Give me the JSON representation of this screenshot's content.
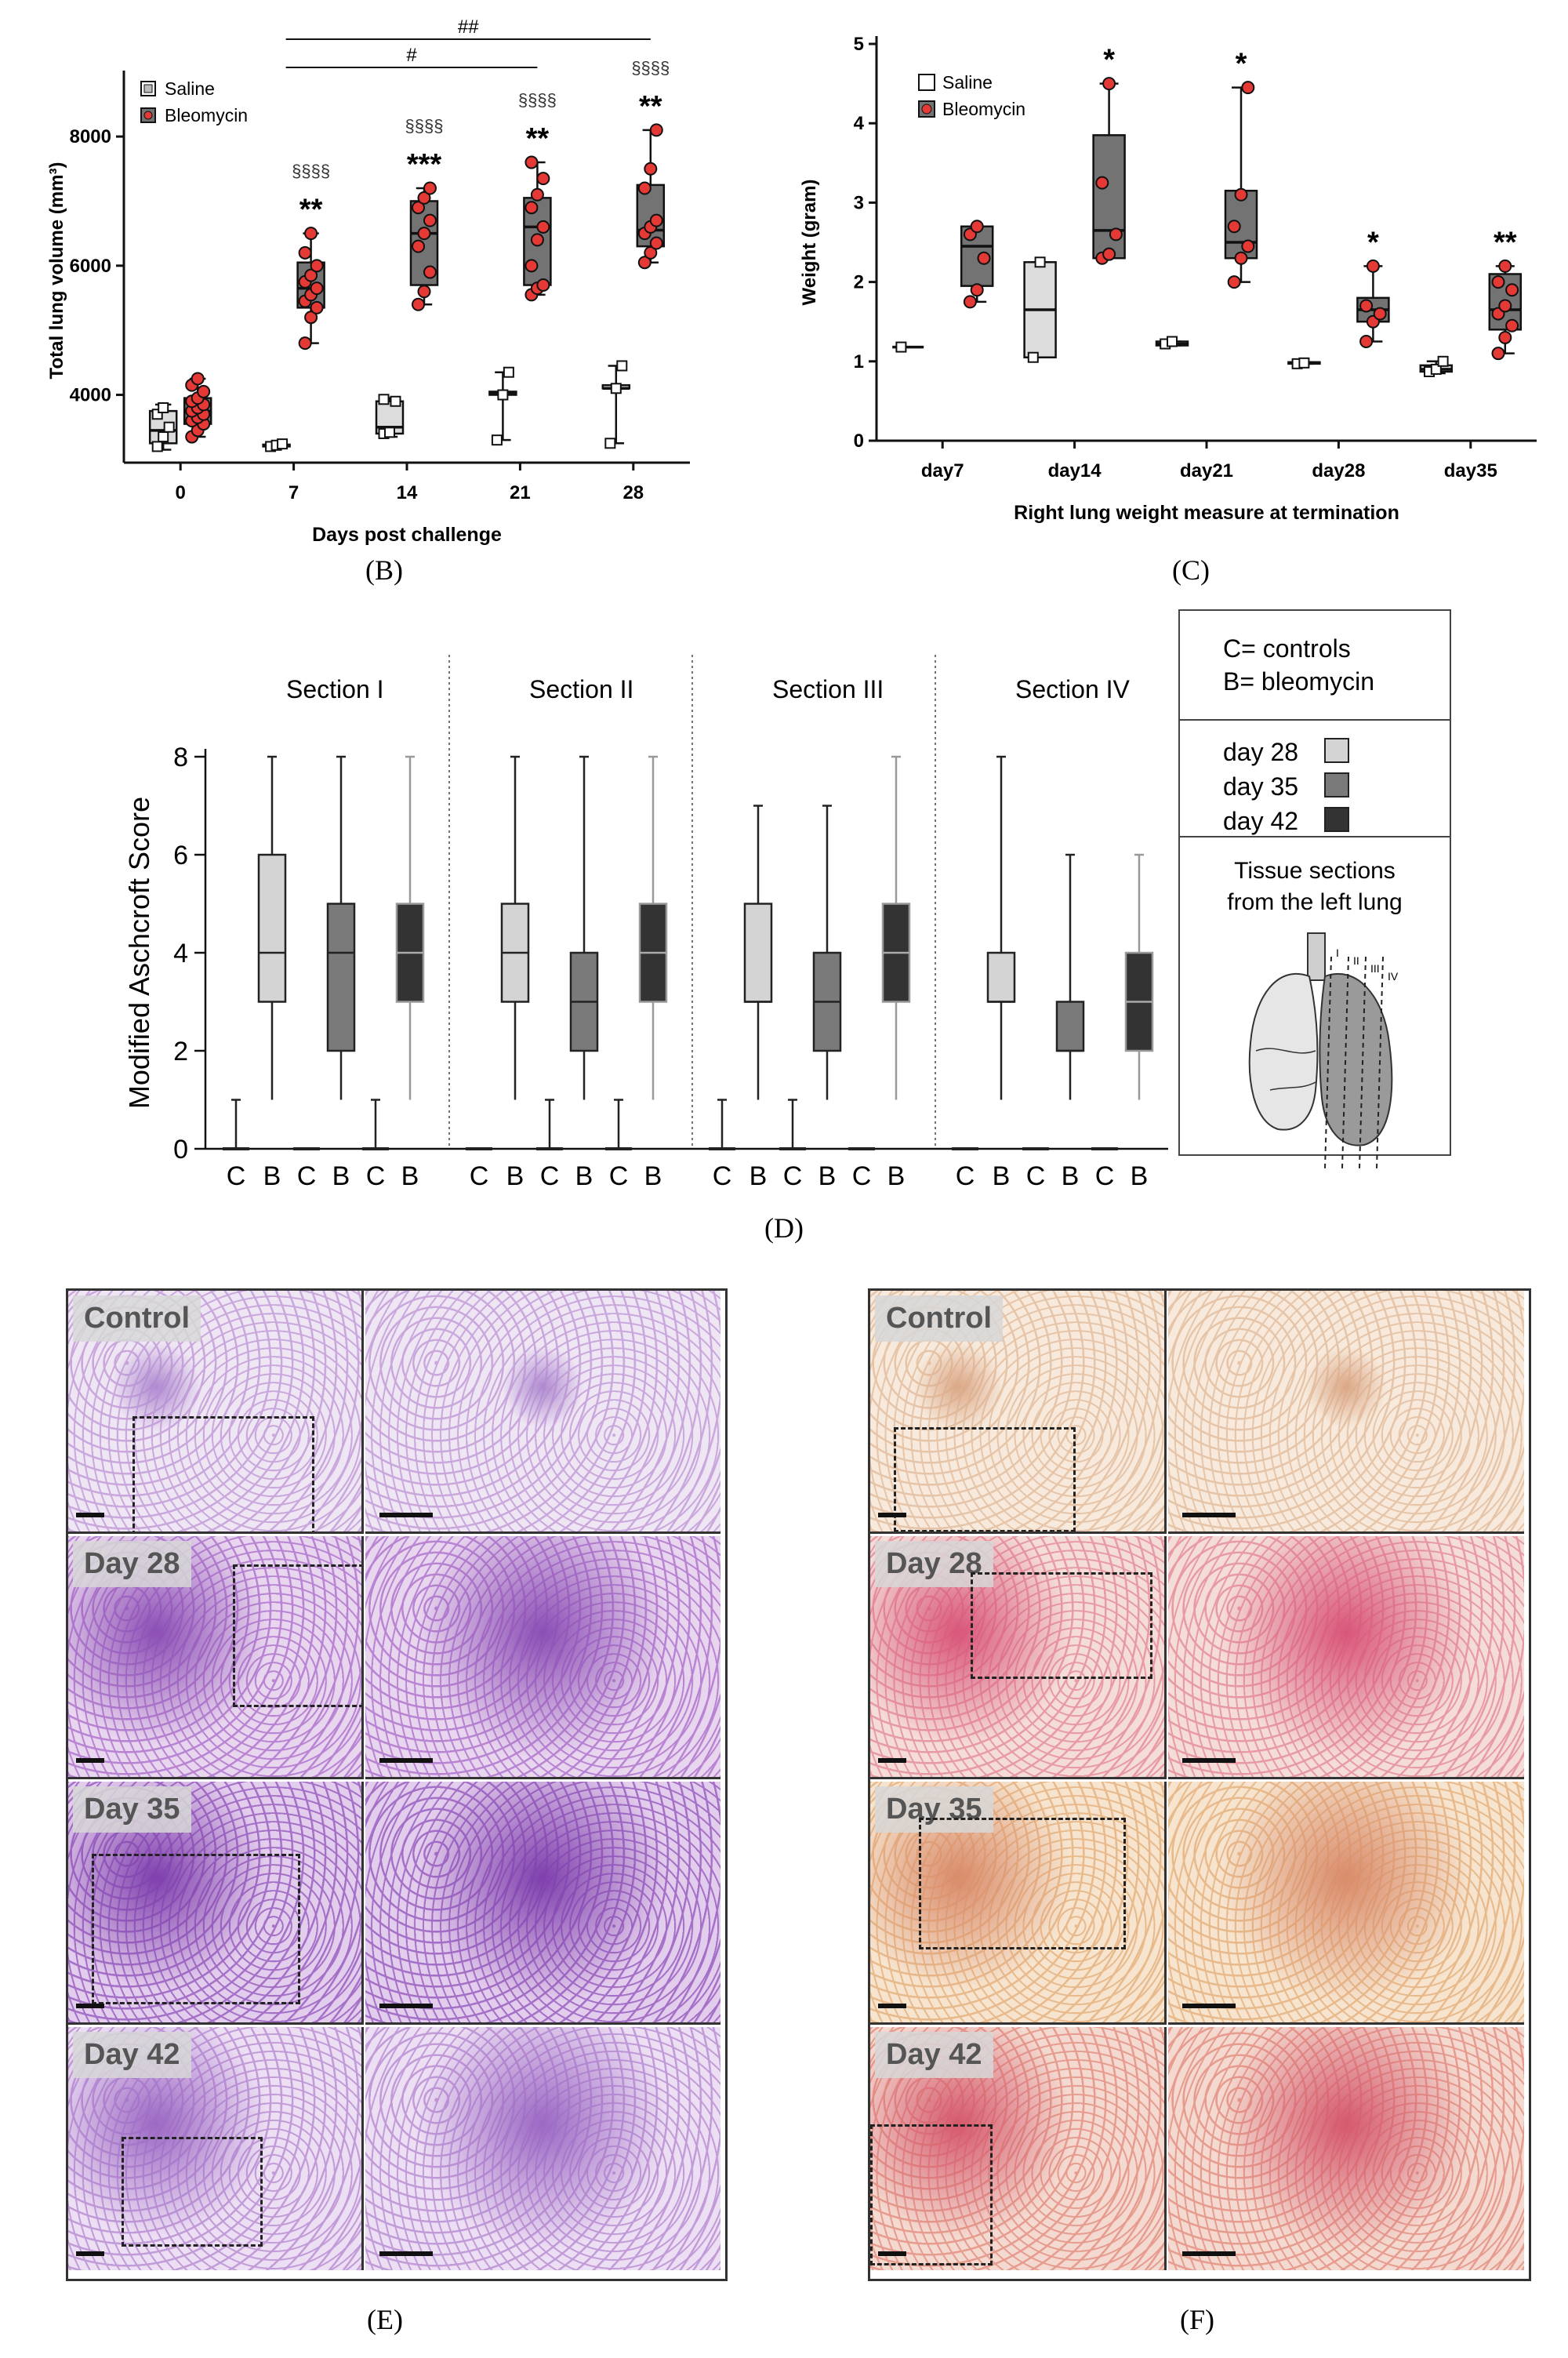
{
  "panels": {
    "B": "(B)",
    "C": "(C)",
    "D": "(D)",
    "E": "(E)",
    "F": "(F)"
  },
  "chart_data": [
    {
      "id": "B",
      "type": "box",
      "xlabel": "Days post challenge",
      "ylabel": "Total lung volume (mm³)",
      "categories": [
        "0",
        "7",
        "14",
        "21",
        "28"
      ],
      "yticks": [
        "4000",
        "6000",
        "8000"
      ],
      "ylim": [
        2950,
        8900
      ],
      "legend": [
        "Saline",
        "Bleomycin"
      ],
      "legend_position": "top-left",
      "series": [
        {
          "name": "Saline",
          "boxes": [
            {
              "cat": "0",
              "min": 3150,
              "q1": 3250,
              "median": 3450,
              "q3": 3750,
              "max": 3850,
              "points": [
                3200,
                3350,
                3500,
                3700,
                3800
              ]
            },
            {
              "cat": "7",
              "min": 3180,
              "q1": 3200,
              "median": 3220,
              "q3": 3230,
              "max": 3250,
              "points": [
                3200,
                3220,
                3240
              ]
            },
            {
              "cat": "14",
              "min": 3350,
              "q1": 3400,
              "median": 3500,
              "q3": 3900,
              "max": 3950,
              "points": [
                3400,
                3420,
                3900,
                3930
              ]
            },
            {
              "cat": "21",
              "min": 3300,
              "q1": 4000,
              "median": 4020,
              "q3": 4050,
              "max": 4350,
              "points": [
                3300,
                4000,
                4350
              ]
            },
            {
              "cat": "28",
              "min": 3250,
              "q1": 4100,
              "median": 4100,
              "q3": 4150,
              "max": 4450,
              "points": [
                3250,
                4100,
                4450
              ]
            }
          ]
        },
        {
          "name": "Bleomycin",
          "boxes": [
            {
              "cat": "0",
              "min": 3350,
              "q1": 3550,
              "median": 3750,
              "q3": 3950,
              "max": 4250,
              "points": [
                3350,
                3450,
                3550,
                3600,
                3650,
                3700,
                3750,
                3800,
                3850,
                3900,
                3950,
                4050,
                4150,
                4250
              ]
            },
            {
              "cat": "7",
              "min": 4800,
              "q1": 5350,
              "median": 5650,
              "q3": 6050,
              "max": 6500,
              "points": [
                4800,
                5200,
                5350,
                5450,
                5550,
                5650,
                5750,
                5850,
                6000,
                6200,
                6500
              ]
            },
            {
              "cat": "14",
              "min": 5400,
              "q1": 5700,
              "median": 6500,
              "q3": 7000,
              "max": 7200,
              "points": [
                5400,
                5600,
                5900,
                6300,
                6500,
                6700,
                6900,
                7050,
                7200
              ]
            },
            {
              "cat": "21",
              "min": 5550,
              "q1": 5700,
              "median": 6600,
              "q3": 7050,
              "max": 7600,
              "points": [
                5550,
                5650,
                5700,
                6000,
                6400,
                6600,
                6900,
                7100,
                7350,
                7600
              ]
            },
            {
              "cat": "28",
              "min": 6050,
              "q1": 6300,
              "median": 6550,
              "q3": 7250,
              "max": 8100,
              "points": [
                6050,
                6200,
                6350,
                6500,
                6600,
                6700,
                7200,
                7500,
                8100
              ]
            }
          ]
        }
      ],
      "annotations": [
        {
          "cat": "7",
          "stars": "**",
          "section": "§§§§"
        },
        {
          "cat": "14",
          "stars": "***",
          "section": "§§§§"
        },
        {
          "cat": "21",
          "stars": "**",
          "section": "§§§§"
        },
        {
          "cat": "28",
          "stars": "**",
          "section": "§§§§"
        }
      ],
      "brackets": [
        {
          "from": "7",
          "to": "21",
          "label": "#"
        },
        {
          "from": "7",
          "to": "28",
          "label": "##"
        }
      ]
    },
    {
      "id": "C",
      "type": "box",
      "xlabel": "Right lung weight measure at termination",
      "ylabel": "Weight (gram)",
      "categories": [
        "day7",
        "day14",
        "day21",
        "day28",
        "day35"
      ],
      "yticks": [
        "0",
        "1",
        "2",
        "3",
        "4",
        "5"
      ],
      "ylim": [
        0,
        5
      ],
      "legend": [
        "Saline",
        "Bleomycin"
      ],
      "legend_position": "top-left",
      "series": [
        {
          "name": "Saline",
          "boxes": [
            {
              "cat": "day7",
              "min": 1.18,
              "q1": 1.18,
              "median": 1.18,
              "q3": 1.18,
              "max": 1.18,
              "points": [
                1.18
              ]
            },
            {
              "cat": "day14",
              "min": 1.05,
              "q1": 1.05,
              "median": 1.65,
              "q3": 2.25,
              "max": 2.25,
              "points": [
                1.05,
                2.25
              ]
            },
            {
              "cat": "day21",
              "min": 1.2,
              "q1": 1.2,
              "median": 1.22,
              "q3": 1.25,
              "max": 1.25,
              "points": [
                1.22,
                1.25
              ]
            },
            {
              "cat": "day28",
              "min": 0.97,
              "q1": 0.97,
              "median": 0.98,
              "q3": 0.99,
              "max": 0.99,
              "points": [
                0.97,
                0.98
              ]
            },
            {
              "cat": "day35",
              "min": 0.85,
              "q1": 0.87,
              "median": 0.9,
              "q3": 0.95,
              "max": 1.0,
              "points": [
                0.87,
                0.9,
                1.0
              ]
            }
          ]
        },
        {
          "name": "Bleomycin",
          "boxes": [
            {
              "cat": "day7",
              "min": 1.75,
              "q1": 1.95,
              "median": 2.45,
              "q3": 2.7,
              "max": 2.7,
              "points": [
                1.75,
                1.9,
                2.3,
                2.6,
                2.7
              ]
            },
            {
              "cat": "day14",
              "min": 2.3,
              "q1": 2.3,
              "median": 2.65,
              "q3": 3.85,
              "max": 4.5,
              "points": [
                2.3,
                2.35,
                2.6,
                3.25,
                4.5
              ]
            },
            {
              "cat": "day21",
              "min": 2.0,
              "q1": 2.3,
              "median": 2.5,
              "q3": 3.15,
              "max": 4.45,
              "points": [
                2.0,
                2.3,
                2.45,
                2.7,
                3.1,
                4.45
              ]
            },
            {
              "cat": "day28",
              "min": 1.25,
              "q1": 1.5,
              "median": 1.65,
              "q3": 1.8,
              "max": 2.2,
              "points": [
                1.25,
                1.5,
                1.6,
                1.7,
                2.2
              ]
            },
            {
              "cat": "day35",
              "min": 1.1,
              "q1": 1.4,
              "median": 1.65,
              "q3": 2.1,
              "max": 2.2,
              "points": [
                1.1,
                1.3,
                1.45,
                1.6,
                1.7,
                1.9,
                2.0,
                2.2
              ]
            }
          ]
        }
      ],
      "annotations": [
        {
          "cat": "day14",
          "stars": "*"
        },
        {
          "cat": "day21",
          "stars": "*"
        },
        {
          "cat": "day28",
          "stars": "*"
        },
        {
          "cat": "day35",
          "stars": "**"
        }
      ]
    },
    {
      "id": "D",
      "type": "box",
      "ylabel": "Modified Aschcroft Score",
      "yticks": [
        "0",
        "2",
        "4",
        "6",
        "8"
      ],
      "ylim": [
        0,
        8
      ],
      "sections": [
        {
          "title": "Section I",
          "boxes": [
            {
              "label": "C",
              "day": "day 28",
              "min": 0,
              "q1": 0,
              "median": 0,
              "q3": 0,
              "max": 1
            },
            {
              "label": "B",
              "day": "day 28",
              "min": 1,
              "q1": 3,
              "median": 4,
              "q3": 6,
              "max": 8
            },
            {
              "label": "C",
              "day": "day 35",
              "min": 0,
              "q1": 0,
              "median": 0,
              "q3": 0,
              "max": 0
            },
            {
              "label": "B",
              "day": "day 35",
              "min": 1,
              "q1": 2,
              "median": 4,
              "q3": 5,
              "max": 8
            },
            {
              "label": "C",
              "day": "day 42",
              "min": 0,
              "q1": 0,
              "median": 0,
              "q3": 0,
              "max": 1
            },
            {
              "label": "B",
              "day": "day 42",
              "min": 1,
              "q1": 3,
              "median": 4,
              "q3": 5,
              "max": 8
            }
          ]
        },
        {
          "title": "Section II",
          "boxes": [
            {
              "label": "C",
              "day": "day 28",
              "min": 0,
              "q1": 0,
              "median": 0,
              "q3": 0,
              "max": 0
            },
            {
              "label": "B",
              "day": "day 28",
              "min": 1,
              "q1": 3,
              "median": 4,
              "q3": 5,
              "max": 8
            },
            {
              "label": "C",
              "day": "day 35",
              "min": 0,
              "q1": 0,
              "median": 0,
              "q3": 0,
              "max": 1
            },
            {
              "label": "B",
              "day": "day 35",
              "min": 1,
              "q1": 2,
              "median": 3,
              "q3": 4,
              "max": 8
            },
            {
              "label": "C",
              "day": "day 42",
              "min": 0,
              "q1": 0,
              "median": 0,
              "q3": 0,
              "max": 1
            },
            {
              "label": "B",
              "day": "day 42",
              "min": 1,
              "q1": 3,
              "median": 4,
              "q3": 5,
              "max": 8
            }
          ]
        },
        {
          "title": "Section III",
          "boxes": [
            {
              "label": "C",
              "day": "day 28",
              "min": 0,
              "q1": 0,
              "median": 0,
              "q3": 0,
              "max": 1
            },
            {
              "label": "B",
              "day": "day 28",
              "min": 1,
              "q1": 3,
              "median": 3,
              "q3": 5,
              "max": 7
            },
            {
              "label": "C",
              "day": "day 35",
              "min": 0,
              "q1": 0,
              "median": 0,
              "q3": 0,
              "max": 1
            },
            {
              "label": "B",
              "day": "day 35",
              "min": 1,
              "q1": 2,
              "median": 3,
              "q3": 4,
              "max": 7
            },
            {
              "label": "C",
              "day": "day 42",
              "min": 0,
              "q1": 0,
              "median": 0,
              "q3": 0,
              "max": 0
            },
            {
              "label": "B",
              "day": "day 42",
              "min": 1,
              "q1": 3,
              "median": 4,
              "q3": 5,
              "max": 8
            }
          ]
        },
        {
          "title": "Section IV",
          "boxes": [
            {
              "label": "C",
              "day": "day 28",
              "min": 0,
              "q1": 0,
              "median": 0,
              "q3": 0,
              "max": 0
            },
            {
              "label": "B",
              "day": "day 28",
              "min": 1,
              "q1": 3,
              "median": 3,
              "q3": 4,
              "max": 8
            },
            {
              "label": "C",
              "day": "day 35",
              "min": 0,
              "q1": 0,
              "median": 0,
              "q3": 0,
              "max": 0
            },
            {
              "label": "B",
              "day": "day 35",
              "min": 1,
              "q1": 2,
              "median": 2,
              "q3": 3,
              "max": 6
            },
            {
              "label": "C",
              "day": "day 42",
              "min": 0,
              "q1": 0,
              "median": 0,
              "q3": 0,
              "max": 0
            },
            {
              "label": "B",
              "day": "day 42",
              "min": 1,
              "q1": 2,
              "median": 3,
              "q3": 4,
              "max": 6
            }
          ]
        }
      ],
      "legend": {
        "abbrev": [
          "C= controls",
          "B= bleomycin"
        ],
        "days": [
          {
            "label": "day 28",
            "color": "#d4d4d4"
          },
          {
            "label": "day 35",
            "color": "#7a7a7a"
          },
          {
            "label": "day 42",
            "color": "#333333"
          }
        ],
        "tissue_caption_1": "Tissue sections",
        "tissue_caption_2": "from the left lung",
        "roman": [
          "I",
          "II",
          "III",
          "IV"
        ]
      }
    }
  ],
  "histology": {
    "E": {
      "rows": [
        {
          "label": "Control",
          "bg": "#efe6f4",
          "tint": "#c9a7dc",
          "dense": "#b08ad0"
        },
        {
          "label": "Day 28",
          "bg": "#e8d5ee",
          "tint": "#b883d2",
          "dense": "#8c4fb5"
        },
        {
          "label": "Day 35",
          "bg": "#e3cdec",
          "tint": "#a46fc7",
          "dense": "#7f40ad"
        },
        {
          "label": "Day 42",
          "bg": "#eddff3",
          "tint": "#c19ad8",
          "dense": "#9c69c4"
        }
      ]
    },
    "F": {
      "rows": [
        {
          "label": "Control",
          "bg": "#f7eadc",
          "tint": "#e6c4a8",
          "dense": "#dba887"
        },
        {
          "label": "Day 28",
          "bg": "#f4dcd8",
          "tint": "#e79aa3",
          "dense": "#d9567a"
        },
        {
          "label": "Day 35",
          "bg": "#f6e4cf",
          "tint": "#e8b98a",
          "dense": "#d98c6a"
        },
        {
          "label": "Day 42",
          "bg": "#f3d9cf",
          "tint": "#e69b8e",
          "dense": "#d5596c"
        }
      ]
    }
  },
  "colors": {
    "saline_fill": "#dcdcdc",
    "bleo_fill": "#737373",
    "bleo_point": "#e53935",
    "text": "#111111"
  }
}
